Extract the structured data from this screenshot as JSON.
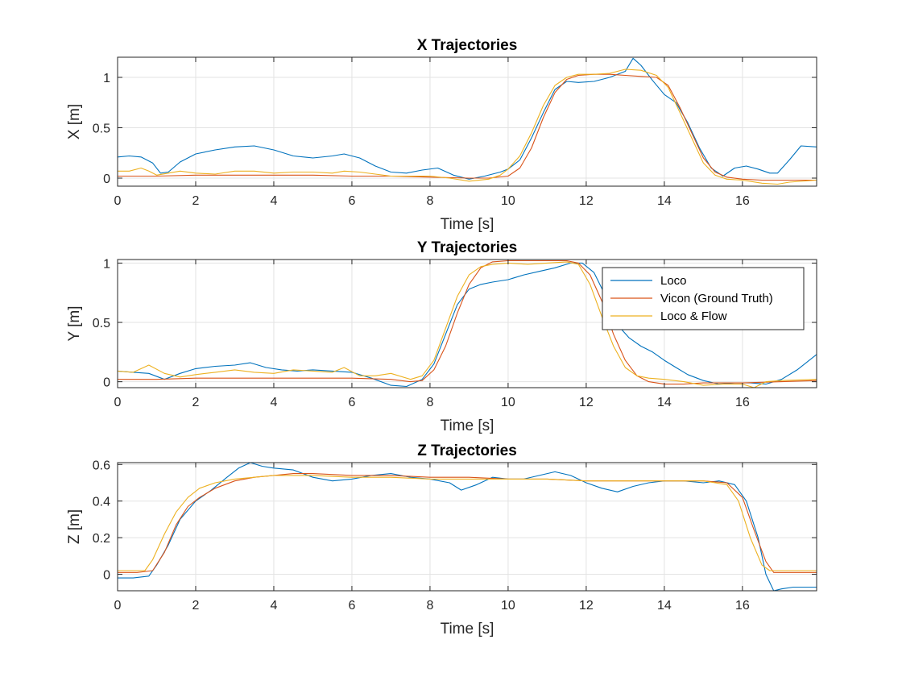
{
  "chart_data": [
    {
      "type": "line",
      "title": "X Trajectories",
      "xlabel": "Time [s]",
      "ylabel": "X [m]",
      "xlim": [
        0,
        17.9
      ],
      "ylim": [
        -0.08,
        1.2
      ],
      "xticks": [
        0,
        2,
        4,
        6,
        8,
        10,
        12,
        14,
        16
      ],
      "yticks": [
        0,
        0.5,
        1
      ],
      "ytick_labels": [
        "0",
        "0.5",
        "1"
      ],
      "grid": true,
      "legend": false,
      "series": [
        {
          "name": "Loco",
          "color": "#0072BD",
          "x": [
            0,
            0.3,
            0.6,
            0.9,
            1.1,
            1.3,
            1.6,
            2.0,
            2.5,
            3.0,
            3.5,
            4.0,
            4.5,
            5.0,
            5.5,
            5.8,
            6.2,
            6.6,
            7.0,
            7.4,
            7.8,
            8.2,
            8.6,
            9.0,
            9.4,
            9.8,
            10.0,
            10.3,
            10.6,
            10.9,
            11.2,
            11.5,
            11.8,
            12.2,
            12.6,
            13.0,
            13.2,
            13.4,
            13.7,
            14.0,
            14.3,
            14.6,
            14.9,
            15.2,
            15.5,
            15.8,
            16.1,
            16.4,
            16.7,
            16.9,
            17.2,
            17.5,
            17.9
          ],
          "y": [
            0.21,
            0.22,
            0.21,
            0.15,
            0.05,
            0.06,
            0.16,
            0.24,
            0.28,
            0.31,
            0.32,
            0.28,
            0.22,
            0.2,
            0.22,
            0.24,
            0.2,
            0.12,
            0.06,
            0.05,
            0.08,
            0.1,
            0.03,
            -0.01,
            0.02,
            0.06,
            0.09,
            0.18,
            0.4,
            0.65,
            0.88,
            0.96,
            0.95,
            0.96,
            1.0,
            1.06,
            1.19,
            1.12,
            0.97,
            0.83,
            0.75,
            0.55,
            0.3,
            0.1,
            0.02,
            0.1,
            0.12,
            0.09,
            0.05,
            0.05,
            0.18,
            0.32,
            0.31
          ]
        },
        {
          "name": "Vicon (Ground Truth)",
          "color": "#D95319",
          "x": [
            0,
            1,
            2,
            3,
            4,
            5,
            6,
            7,
            8,
            9,
            9.5,
            10.0,
            10.3,
            10.6,
            10.9,
            11.2,
            11.5,
            11.8,
            12.2,
            12.6,
            13.0,
            13.4,
            13.8,
            14.1,
            14.4,
            14.7,
            15.0,
            15.3,
            15.6,
            16.0,
            16.5,
            17.0,
            17.9
          ],
          "y": [
            0.02,
            0.02,
            0.03,
            0.03,
            0.03,
            0.03,
            0.02,
            0.02,
            0.01,
            0.0,
            0.0,
            0.02,
            0.1,
            0.3,
            0.6,
            0.85,
            0.98,
            1.02,
            1.03,
            1.03,
            1.02,
            1.01,
            1.0,
            0.92,
            0.7,
            0.45,
            0.2,
            0.06,
            0.01,
            -0.01,
            -0.02,
            -0.02,
            -0.02
          ]
        },
        {
          "name": "Loco & Flow",
          "color": "#EDB120",
          "x": [
            0,
            0.3,
            0.6,
            0.8,
            1.0,
            1.3,
            1.6,
            2.0,
            2.5,
            3.0,
            3.5,
            4.0,
            4.5,
            5.0,
            5.5,
            5.8,
            6.2,
            6.6,
            7.0,
            7.5,
            8.0,
            8.5,
            9.0,
            9.5,
            9.8,
            10.0,
            10.3,
            10.6,
            10.9,
            11.2,
            11.5,
            11.8,
            12.2,
            12.6,
            13.0,
            13.4,
            13.8,
            14.1,
            14.4,
            14.7,
            15.0,
            15.3,
            15.6,
            16.0,
            16.5,
            16.9,
            17.2,
            17.9
          ],
          "y": [
            0.07,
            0.07,
            0.1,
            0.07,
            0.03,
            0.05,
            0.07,
            0.05,
            0.04,
            0.07,
            0.07,
            0.05,
            0.06,
            0.06,
            0.05,
            0.07,
            0.06,
            0.04,
            0.02,
            0.02,
            0.02,
            0.0,
            -0.03,
            -0.01,
            0.03,
            0.09,
            0.22,
            0.45,
            0.72,
            0.92,
            1.0,
            1.03,
            1.03,
            1.04,
            1.08,
            1.07,
            1.02,
            0.9,
            0.65,
            0.4,
            0.15,
            0.03,
            -0.01,
            -0.02,
            -0.05,
            -0.06,
            -0.04,
            -0.02
          ]
        }
      ]
    },
    {
      "type": "line",
      "title": "Y Trajectories",
      "xlabel": "Time [s]",
      "ylabel": "Y [m]",
      "xlim": [
        0,
        17.9
      ],
      "ylim": [
        -0.05,
        1.03
      ],
      "xticks": [
        0,
        2,
        4,
        6,
        8,
        10,
        12,
        14,
        16
      ],
      "yticks": [
        0,
        0.5,
        1
      ],
      "ytick_labels": [
        "0",
        "0.5",
        "1"
      ],
      "grid": true,
      "legend": true,
      "legend_position": "top-right",
      "series": [
        {
          "name": "Loco",
          "color": "#0072BD",
          "x": [
            0,
            0.4,
            0.8,
            1.2,
            1.6,
            2.0,
            2.5,
            3.0,
            3.4,
            3.8,
            4.2,
            4.6,
            5.0,
            5.5,
            6.0,
            6.5,
            7.0,
            7.4,
            7.8,
            8.1,
            8.4,
            8.7,
            9.0,
            9.3,
            9.6,
            10.0,
            10.4,
            10.8,
            11.2,
            11.6,
            11.9,
            12.2,
            12.5,
            12.8,
            13.1,
            13.4,
            13.7,
            14.0,
            14.3,
            14.6,
            15.0,
            15.4,
            15.8,
            16.2,
            16.6,
            17.0,
            17.4,
            17.9
          ],
          "y": [
            0.09,
            0.08,
            0.07,
            0.02,
            0.07,
            0.11,
            0.13,
            0.14,
            0.16,
            0.12,
            0.1,
            0.09,
            0.1,
            0.09,
            0.08,
            0.03,
            -0.03,
            -0.04,
            0.02,
            0.15,
            0.4,
            0.65,
            0.78,
            0.82,
            0.84,
            0.86,
            0.9,
            0.93,
            0.96,
            1.0,
            1.0,
            0.92,
            0.72,
            0.48,
            0.37,
            0.3,
            0.25,
            0.18,
            0.12,
            0.06,
            0.01,
            -0.02,
            -0.01,
            -0.01,
            -0.02,
            0.02,
            0.1,
            0.23
          ]
        },
        {
          "name": "Vicon (Ground Truth)",
          "color": "#D95319",
          "x": [
            0,
            1,
            2,
            3,
            4,
            5,
            6,
            7,
            7.5,
            7.8,
            8.1,
            8.4,
            8.7,
            9.0,
            9.3,
            9.6,
            10.0,
            10.5,
            11.0,
            11.5,
            11.8,
            12.1,
            12.4,
            12.7,
            13.0,
            13.3,
            13.6,
            14.0,
            14.5,
            15.0,
            16.0,
            17.0,
            17.9
          ],
          "y": [
            0.02,
            0.02,
            0.03,
            0.03,
            0.03,
            0.03,
            0.03,
            0.02,
            0.0,
            0.01,
            0.1,
            0.3,
            0.58,
            0.82,
            0.96,
            1.01,
            1.02,
            1.02,
            1.02,
            1.02,
            1.0,
            0.9,
            0.68,
            0.4,
            0.18,
            0.05,
            0.0,
            -0.02,
            -0.02,
            -0.01,
            -0.01,
            0.0,
            0.01
          ]
        },
        {
          "name": "Loco & Flow",
          "color": "#EDB120",
          "x": [
            0,
            0.4,
            0.8,
            1.2,
            1.6,
            2.0,
            2.5,
            3.0,
            3.5,
            4.0,
            4.5,
            5.0,
            5.5,
            5.8,
            6.2,
            6.6,
            7.0,
            7.5,
            7.8,
            8.1,
            8.4,
            8.7,
            9.0,
            9.3,
            9.6,
            10.0,
            10.5,
            11.0,
            11.5,
            11.8,
            12.1,
            12.4,
            12.7,
            13.0,
            13.3,
            13.6,
            14.0,
            14.5,
            15.0,
            15.5,
            16.0,
            16.3,
            16.6,
            17.0,
            17.9
          ],
          "y": [
            0.09,
            0.08,
            0.14,
            0.07,
            0.04,
            0.06,
            0.08,
            0.1,
            0.08,
            0.07,
            0.1,
            0.09,
            0.08,
            0.12,
            0.05,
            0.05,
            0.07,
            0.02,
            0.05,
            0.18,
            0.45,
            0.72,
            0.9,
            0.97,
            0.99,
            1.0,
            0.99,
            1.0,
            1.01,
            0.99,
            0.82,
            0.55,
            0.3,
            0.12,
            0.05,
            0.03,
            0.02,
            0.0,
            -0.03,
            -0.02,
            -0.02,
            -0.05,
            0.0,
            0.01,
            0.02
          ]
        }
      ]
    },
    {
      "type": "line",
      "title": "Z Trajectories",
      "xlabel": "Time [s]",
      "ylabel": "Z [m]",
      "xlim": [
        0,
        17.9
      ],
      "ylim": [
        -0.09,
        0.61
      ],
      "xticks": [
        0,
        2,
        4,
        6,
        8,
        10,
        12,
        14,
        16
      ],
      "yticks": [
        0,
        0.2,
        0.4,
        0.6
      ],
      "ytick_labels": [
        "0",
        "0.2",
        "0.4",
        "0.6"
      ],
      "grid": true,
      "legend": false,
      "series": [
        {
          "name": "Loco",
          "color": "#0072BD",
          "x": [
            0,
            0.4,
            0.8,
            1.0,
            1.3,
            1.6,
            2.0,
            2.4,
            2.8,
            3.1,
            3.4,
            3.7,
            4.0,
            4.5,
            5.0,
            5.5,
            6.0,
            6.5,
            7.0,
            7.5,
            8.0,
            8.5,
            8.8,
            9.2,
            9.6,
            10.0,
            10.4,
            10.8,
            11.2,
            11.6,
            12.0,
            12.4,
            12.8,
            13.2,
            13.6,
            14.0,
            14.5,
            15.0,
            15.4,
            15.8,
            16.1,
            16.4,
            16.6,
            16.8,
            17.0,
            17.3,
            17.6,
            17.9
          ],
          "y": [
            -0.02,
            -0.02,
            -0.01,
            0.05,
            0.16,
            0.3,
            0.4,
            0.46,
            0.53,
            0.58,
            0.61,
            0.59,
            0.58,
            0.57,
            0.53,
            0.51,
            0.52,
            0.54,
            0.55,
            0.53,
            0.52,
            0.5,
            0.46,
            0.49,
            0.53,
            0.52,
            0.52,
            0.54,
            0.56,
            0.54,
            0.5,
            0.47,
            0.45,
            0.48,
            0.5,
            0.51,
            0.51,
            0.5,
            0.51,
            0.49,
            0.4,
            0.2,
            0.0,
            -0.09,
            -0.08,
            -0.07,
            -0.07,
            -0.07
          ]
        },
        {
          "name": "Vicon (Ground Truth)",
          "color": "#D95319",
          "x": [
            0,
            0.5,
            0.9,
            1.2,
            1.5,
            1.8,
            2.1,
            2.5,
            3.0,
            3.5,
            4.0,
            4.5,
            5.0,
            6.0,
            7.0,
            8.0,
            9.0,
            10.0,
            11.0,
            12.0,
            13.0,
            14.0,
            15.0,
            15.6,
            16.0,
            16.3,
            16.6,
            16.8,
            17.0,
            17.9
          ],
          "y": [
            0.01,
            0.01,
            0.02,
            0.12,
            0.27,
            0.37,
            0.42,
            0.47,
            0.51,
            0.53,
            0.54,
            0.55,
            0.55,
            0.54,
            0.54,
            0.53,
            0.53,
            0.52,
            0.52,
            0.51,
            0.51,
            0.51,
            0.51,
            0.5,
            0.42,
            0.24,
            0.07,
            0.01,
            0.01,
            0.01
          ]
        },
        {
          "name": "Loco & Flow",
          "color": "#EDB120",
          "x": [
            0,
            0.4,
            0.7,
            0.9,
            1.2,
            1.5,
            1.8,
            2.1,
            2.5,
            3.0,
            3.5,
            4.0,
            4.5,
            5.0,
            6.0,
            7.0,
            8.0,
            9.0,
            10.0,
            11.0,
            12.0,
            13.0,
            14.0,
            15.0,
            15.6,
            15.9,
            16.2,
            16.5,
            16.7,
            17.0,
            17.9
          ],
          "y": [
            0.02,
            0.02,
            0.02,
            0.08,
            0.22,
            0.34,
            0.42,
            0.47,
            0.5,
            0.52,
            0.53,
            0.54,
            0.54,
            0.54,
            0.53,
            0.53,
            0.52,
            0.52,
            0.52,
            0.52,
            0.51,
            0.51,
            0.51,
            0.51,
            0.49,
            0.4,
            0.2,
            0.05,
            0.02,
            0.02,
            0.02
          ]
        }
      ]
    }
  ]
}
